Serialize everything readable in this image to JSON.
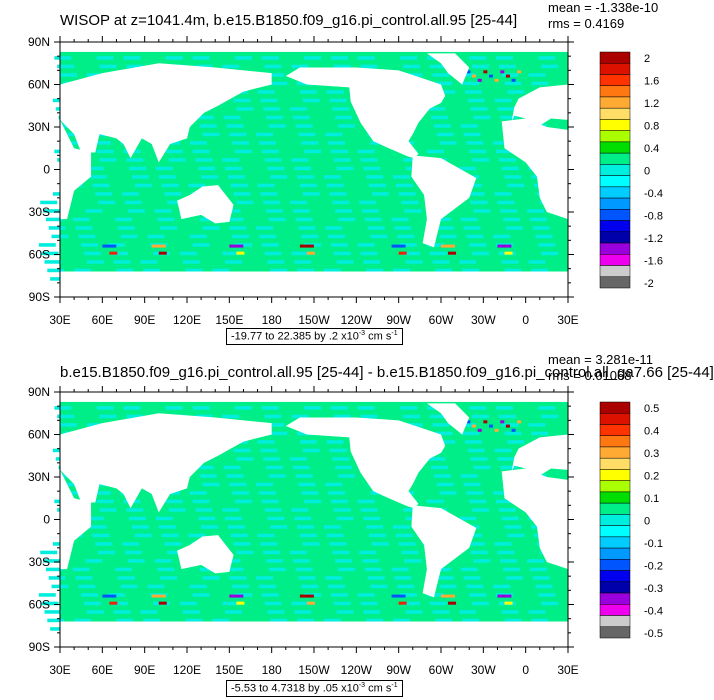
{
  "colors": {
    "land": "#ffffff",
    "ocean_base": "#00ee88",
    "ocean_alt": "#00eedd",
    "warm_accents": [
      "#ffff00",
      "#ffaa33",
      "#ee2200",
      "#aa0000"
    ],
    "cold_accents": [
      "#0055ff",
      "#0000cc",
      "#9900dd",
      "#ee00ee"
    ]
  },
  "chart_data": [
    {
      "type": "heatmap",
      "title": "WISOP at z=1041.4m, b.e15.B1850.f09_g16.pi_control.all.95 [25-44]",
      "mean_label": "mean = -1.338e-10",
      "rms_label": "rms = 0.4169",
      "x_ticks": [
        "30E",
        "60E",
        "90E",
        "120E",
        "150E",
        "180",
        "150W",
        "120W",
        "90W",
        "60W",
        "30W",
        "0",
        "30E"
      ],
      "y_ticks": [
        "90N",
        "60N",
        "30N",
        "0",
        "30S",
        "60S",
        "90S"
      ],
      "xlim": [
        30,
        390
      ],
      "ylim": [
        -90,
        90
      ],
      "contour_info": "-19.77 to 22.385 by .2",
      "units_suffix": "cm s",
      "colorbar": {
        "labels": [
          "2",
          "1.6",
          "1.2",
          "0.8",
          "0.4",
          "0",
          "-0.4",
          "-0.8",
          "-1.2",
          "-1.6",
          "-2"
        ],
        "colors": [
          "#aa0000",
          "#dd1100",
          "#ff3300",
          "#ff7711",
          "#ffaa33",
          "#ffdd66",
          "#ffff00",
          "#aaff00",
          "#00dd00",
          "#00ee88",
          "#00eedd",
          "#00ffff",
          "#00ccff",
          "#0099ff",
          "#0055ff",
          "#0000ee",
          "#0000aa",
          "#9900dd",
          "#ee00ee",
          "#cccccc",
          "#666666"
        ]
      }
    },
    {
      "type": "heatmap",
      "title": "b.e15.B1850.f09_g16.pi_control.all.95 [25-44] - b.e15.B1850.f09_g16.pi_control.all_ga7.66 [25-44]",
      "mean_label": "mean = 3.281e-11",
      "rms_label": "rms = 0.01068",
      "x_ticks": [
        "30E",
        "60E",
        "90E",
        "120E",
        "150E",
        "180",
        "150W",
        "120W",
        "90W",
        "60W",
        "30W",
        "0",
        "30E"
      ],
      "y_ticks": [
        "90N",
        "60N",
        "30N",
        "0",
        "30S",
        "60S",
        "90S"
      ],
      "xlim": [
        30,
        390
      ],
      "ylim": [
        -90,
        90
      ],
      "contour_info": "-5.53 to 4.7318 by .05",
      "units_suffix": "cm s",
      "colorbar": {
        "labels": [
          "0.5",
          "0.4",
          "0.3",
          "0.2",
          "0.1",
          "0",
          "-0.1",
          "-0.2",
          "-0.3",
          "-0.4",
          "-0.5"
        ],
        "colors": [
          "#aa0000",
          "#dd1100",
          "#ff3300",
          "#ff7711",
          "#ffaa33",
          "#ffdd66",
          "#ffff00",
          "#aaff00",
          "#00dd00",
          "#00ee88",
          "#00eedd",
          "#00ffff",
          "#00ccff",
          "#0099ff",
          "#0055ff",
          "#0000ee",
          "#0000aa",
          "#9900dd",
          "#ee00ee",
          "#cccccc",
          "#666666"
        ]
      }
    }
  ]
}
